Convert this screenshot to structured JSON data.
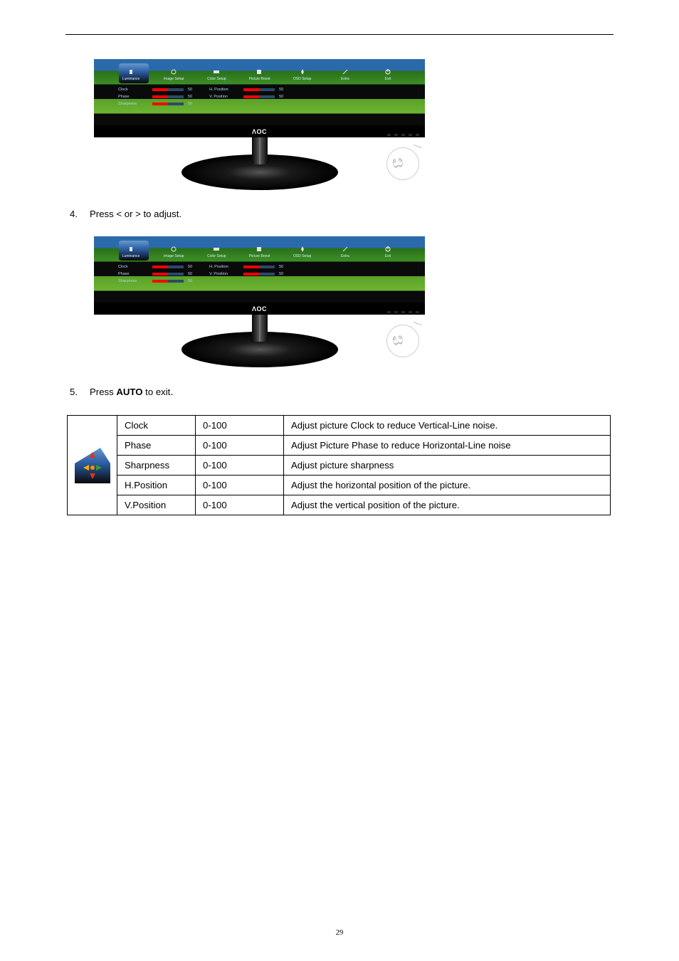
{
  "osd": {
    "tabs": [
      {
        "label": "Luminance"
      },
      {
        "label": "Image Setup"
      },
      {
        "label": "Color Setup"
      },
      {
        "label": "Picture Boost"
      },
      {
        "label": "OSD Setup"
      },
      {
        "label": "Extra"
      },
      {
        "label": "Exit"
      }
    ],
    "block1": {
      "left": [
        {
          "name": "Clock",
          "fill": 0.5,
          "val": "50"
        },
        {
          "name": "Phase",
          "fill": 0.5,
          "val": "50"
        },
        {
          "name": "Sharpness",
          "fill": 0.5,
          "val": "50"
        }
      ],
      "right": [
        {
          "name": "H. Position",
          "fill": 0.5,
          "val": "50"
        },
        {
          "name": "V. Position",
          "fill": 0.5,
          "val": "50"
        }
      ]
    },
    "block2": {
      "left": [
        {
          "name": "Clock",
          "fill": 0.5,
          "val": "50"
        },
        {
          "name": "Phase",
          "fill": 0.5,
          "val": "50"
        },
        {
          "name": "Sharpness",
          "fill": 0.5,
          "val": "50"
        }
      ],
      "right": [
        {
          "name": "H. Position",
          "fill": 0.5,
          "val": "50"
        },
        {
          "name": "V. Position",
          "fill": 0.5,
          "val": "50"
        }
      ]
    },
    "brand": "ΛOC"
  },
  "steps": {
    "s4_num": "4.",
    "s4_a": "Press ",
    "s4_b": "<",
    "s4_c": " or  ",
    "s4_d": ">",
    "s4_e": "  to adjust.",
    "s5_num": "5.",
    "s5_a": "Press ",
    "s5_b": "AUTO",
    "s5_c": " to exit",
    "s5_d": "."
  },
  "table": {
    "rows": [
      {
        "name": "Clock",
        "range": "0-100",
        "desc": "Adjust picture Clock to reduce Vertical-Line noise."
      },
      {
        "name": "Phase",
        "range": "0-100",
        "desc": "Adjust Picture Phase to reduce Horizontal-Line noise"
      },
      {
        "name": "Sharpness",
        "range": "0-100",
        "desc": "Adjust picture sharpness"
      },
      {
        "name": "H.Position",
        "range": "0-100",
        "desc": "Adjust the horizontal position of the picture."
      },
      {
        "name": "V.Position",
        "range": "0-100",
        "desc": "Adjust the vertical position of the picture."
      }
    ]
  },
  "icon": {
    "colors": {
      "grad_top": "#659acc",
      "grad_mid": "#2a5aa0",
      "grad_bot": "#0a0a0a",
      "arrow_red": "#e03020",
      "arrow_yellow": "#f0b000",
      "arrow_green": "#30a030",
      "pivot": "#ff8c00"
    }
  },
  "page_number": "29"
}
